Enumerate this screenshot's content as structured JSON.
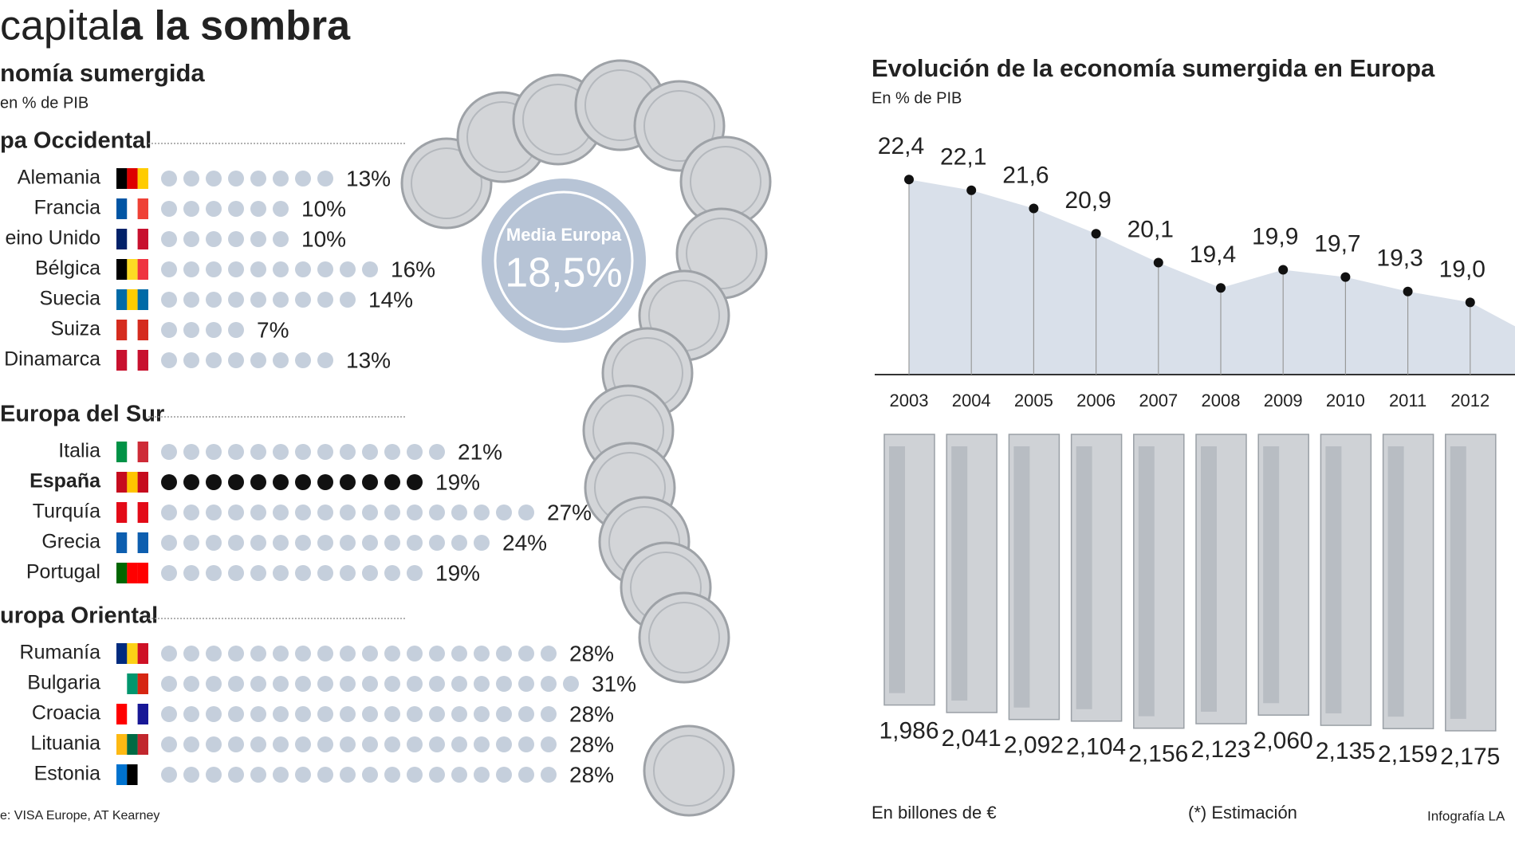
{
  "header": {
    "title_light": "capital",
    "title_bold": "a la sombra"
  },
  "chart_data": [
    {
      "type": "dots",
      "title": "nomía sumergida",
      "subtitle": "en % de PIB",
      "color": "#c5cfdc",
      "highlight_color": "#111111",
      "highlight_label_color": "#c0272d",
      "groups": [
        {
          "name": "pa Occidental",
          "categories": [
            "Alemania",
            "Francia",
            "eino Unido",
            "Bélgica",
            "Suecia",
            "Suiza",
            "Dinamarca"
          ],
          "values": [
            13,
            10,
            10,
            16,
            14,
            7,
            13
          ],
          "value_labels": [
            "13%",
            "10%",
            "10%",
            "16%",
            "14%",
            "7%",
            "13%"
          ]
        },
        {
          "name": "Europa del Sur",
          "categories": [
            "Italia",
            "España",
            "Turquía",
            "Grecia",
            "Portugal"
          ],
          "values": [
            21,
            19,
            27,
            24,
            19
          ],
          "value_labels": [
            "21%",
            "19%",
            "27%",
            "24%",
            "19%"
          ],
          "highlight_index": 1
        },
        {
          "name": "uropa Oriental",
          "categories": [
            "Rumanía",
            "Bulgaria",
            "Croacia",
            "Lituania",
            "Estonia"
          ],
          "values": [
            28,
            31,
            28,
            28,
            28
          ],
          "value_labels": [
            "28%",
            "31%",
            "28%",
            "28%",
            "28%"
          ]
        }
      ],
      "average": {
        "label": "Media Europa",
        "value": 18.5,
        "value_label": "18,5%"
      },
      "source": "e: VISA Europe, AT Kearney"
    },
    {
      "type": "area",
      "title": "Evolución de la economía sumergida en Europa",
      "subtitle": "En % de PIB",
      "color": "#d9e0ea",
      "categories": [
        "2003",
        "2004",
        "2005",
        "2006",
        "2007",
        "2008",
        "2009",
        "2010",
        "2011",
        "2012"
      ],
      "values": [
        22.4,
        22.1,
        21.6,
        20.9,
        20.1,
        19.4,
        19.9,
        19.7,
        19.3,
        19.0
      ],
      "value_labels": [
        "22,4",
        "22,1",
        "21,6",
        "20,9",
        "20,1",
        "19,4",
        "19,9",
        "19,7",
        "19,3",
        "19,0"
      ],
      "ylim": [
        17,
        23
      ],
      "amounts": {
        "label": "En billones de €",
        "values": [
          1.986,
          2.041,
          2.092,
          2.104,
          2.156,
          2.123,
          2.06,
          2.135,
          2.159,
          2.175
        ],
        "value_labels": [
          "1,986",
          "2,041",
          "2,092",
          "2,104",
          "2,156",
          "2,123",
          "2,060",
          "2,135",
          "2,159",
          "2,175"
        ]
      },
      "note": "(*) Estimación",
      "credit": "Infografía LA"
    }
  ]
}
